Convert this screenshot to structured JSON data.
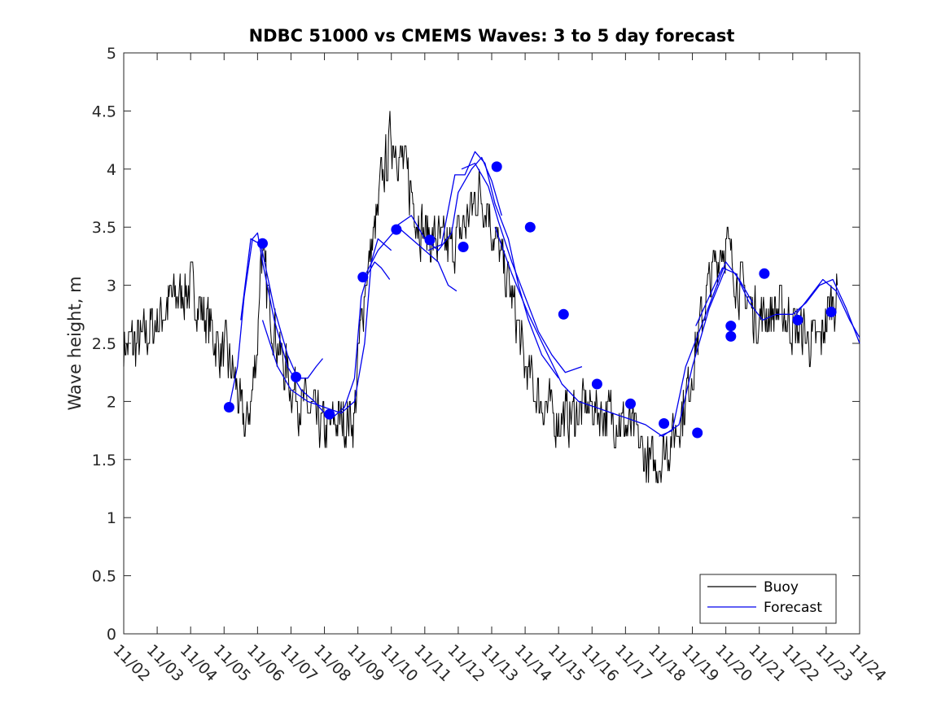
{
  "chart_data": {
    "type": "line",
    "title": "NDBC 51000 vs CMEMS Waves: 3 to 5 day forecast",
    "xlabel": "",
    "ylabel": "Wave height, m",
    "xlim": [
      0,
      22
    ],
    "ylim": [
      0,
      5
    ],
    "yticks": [
      0,
      0.5,
      1,
      1.5,
      2,
      2.5,
      3,
      3.5,
      4,
      4.5,
      5
    ],
    "ytick_labels": [
      "0",
      "0.5",
      "1",
      "1.5",
      "2",
      "2.5",
      "3",
      "3.5",
      "4",
      "4.5",
      "5"
    ],
    "xtick_labels": [
      "11/02",
      "11/03",
      "11/04",
      "11/05",
      "11/06",
      "11/07",
      "11/08",
      "11/09",
      "11/10",
      "11/11",
      "11/12",
      "11/13",
      "11/14",
      "11/15",
      "11/16",
      "11/17",
      "11/18",
      "11/19",
      "11/20",
      "11/21",
      "11/22",
      "11/23",
      "11/24"
    ],
    "x_units": "days since 11/02 00:00",
    "grid": false,
    "legend": {
      "position": "bottom-right",
      "entries": [
        "Buoy",
        "Forecast"
      ]
    },
    "colors": {
      "buoy": "#000000",
      "forecast": "#0000ee",
      "markers": "#0000ff"
    },
    "series": [
      {
        "name": "Buoy",
        "color": "#000000",
        "x": [
          0,
          0.5,
          1,
          1.5,
          2,
          2.5,
          2.8,
          3.2,
          3.4,
          3.5,
          3.65,
          3.8,
          4.0,
          4.1,
          4.3,
          4.6,
          4.8,
          5.0,
          5.3,
          5.6,
          5.8,
          6.0,
          6.5,
          6.9,
          7.0,
          7.2,
          7.4,
          7.6,
          7.7,
          7.9,
          8.0,
          8.3,
          8.6,
          8.8,
          9.0,
          9.2,
          9.5,
          9.8,
          10.0,
          10.3,
          10.6,
          10.9,
          11.0,
          11.2,
          11.4,
          11.6,
          11.8,
          12.0,
          12.3,
          12.6,
          12.9,
          13.2,
          13.5,
          13.8,
          14.1,
          14.4,
          14.7,
          15.0,
          15.3,
          15.6,
          15.9,
          16.2,
          16.5,
          16.8,
          17.0,
          17.2,
          17.4,
          17.6,
          17.8,
          18.0,
          18.2,
          18.4,
          18.6,
          18.8,
          19.0,
          19.2,
          19.5,
          19.8,
          20.0,
          20.3,
          20.6,
          20.8,
          21.0,
          21.2,
          21.35
        ],
        "y": [
          2.5,
          2.5,
          2.7,
          2.9,
          3.0,
          2.7,
          2.5,
          2.3,
          2.1,
          1.9,
          1.75,
          2.0,
          2.5,
          3.3,
          2.9,
          2.5,
          2.3,
          2.15,
          2.0,
          1.9,
          1.8,
          1.75,
          1.85,
          1.85,
          2.3,
          3.0,
          3.3,
          3.6,
          3.9,
          4.1,
          4.3,
          4.1,
          3.8,
          3.6,
          3.45,
          3.4,
          3.35,
          3.3,
          3.4,
          3.6,
          3.8,
          3.7,
          3.5,
          3.3,
          3.1,
          2.9,
          2.6,
          2.3,
          2.1,
          1.95,
          1.85,
          1.85,
          1.9,
          1.95,
          1.95,
          1.9,
          1.85,
          1.8,
          1.7,
          1.5,
          1.45,
          1.6,
          1.75,
          2.0,
          2.3,
          2.6,
          2.9,
          3.1,
          3.3,
          3.35,
          3.2,
          3.0,
          2.9,
          2.8,
          2.7,
          2.75,
          2.8,
          2.75,
          2.65,
          2.6,
          2.5,
          2.5,
          2.7,
          2.9,
          2.9
        ]
      },
      {
        "name": "Forecast",
        "color": "#0000ee",
        "segments": [
          {
            "x": [
              3.15,
              3.4,
              3.6,
              3.85,
              4.0,
              4.15,
              4.5,
              4.9,
              5.3,
              5.7,
              6.0
            ],
            "y": [
              1.95,
              2.3,
              2.9,
              3.4,
              3.45,
              3.2,
              2.7,
              2.3,
              2.1,
              2.0,
              1.9
            ]
          },
          {
            "x": [
              3.5,
              3.8,
              4.1,
              4.5,
              4.9,
              5.2,
              5.5,
              5.75,
              5.95
            ],
            "y": [
              2.7,
              3.4,
              3.35,
              2.8,
              2.4,
              2.2,
              2.2,
              2.3,
              2.37
            ]
          },
          {
            "x": [
              4.15,
              4.6,
              5.0,
              5.5,
              6.0,
              6.5,
              6.9,
              7.2,
              7.4,
              7.6,
              7.8,
              8.0
            ],
            "y": [
              2.7,
              2.3,
              2.1,
              2.0,
              1.95,
              1.9,
              2.0,
              2.5,
              3.2,
              3.4,
              3.35,
              3.3
            ]
          },
          {
            "x": [
              6.2,
              6.6,
              6.9,
              7.1,
              7.3,
              7.5,
              7.7,
              7.95
            ],
            "y": [
              1.85,
              1.95,
              2.2,
              2.9,
              3.1,
              3.2,
              3.15,
              3.05
            ]
          },
          {
            "x": [
              7.15,
              7.6,
              8.2,
              8.6,
              9.0,
              9.4,
              9.7,
              9.95
            ],
            "y": [
              3.05,
              3.3,
              3.5,
              3.4,
              3.3,
              3.2,
              3.0,
              2.95
            ]
          },
          {
            "x": [
              8.1,
              8.6,
              9.0,
              9.4,
              9.8,
              10.0,
              10.4,
              10.7,
              11.0,
              11.3
            ],
            "y": [
              3.5,
              3.6,
              3.4,
              3.3,
              3.45,
              3.8,
              4.0,
              4.1,
              3.9,
              3.6
            ]
          },
          {
            "x": [
              9.1,
              9.5,
              9.9,
              10.2,
              10.5,
              10.8,
              11.1,
              11.5,
              11.8,
              12.1,
              12.5,
              13.0
            ],
            "y": [
              3.3,
              3.35,
              3.95,
              3.95,
              4.15,
              4.05,
              3.7,
              3.4,
              3.0,
              2.7,
              2.4,
              2.2
            ]
          },
          {
            "x": [
              10.1,
              10.5,
              10.9,
              11.2,
              11.6,
              12.0,
              12.4,
              12.8,
              13.2,
              13.7
            ],
            "y": [
              4.0,
              4.05,
              3.85,
              3.55,
              3.2,
              2.9,
              2.6,
              2.4,
              2.25,
              2.3
            ]
          },
          {
            "x": [
              11.1,
              11.6,
              12.1,
              12.6,
              13.1,
              13.6,
              14.1,
              14.6,
              15.1,
              15.6,
              16.1,
              16.6,
              17.0,
              17.5,
              18.0
            ],
            "y": [
              3.5,
              3.1,
              2.75,
              2.45,
              2.15,
              2.0,
              1.95,
              1.9,
              1.85,
              1.8,
              1.7,
              1.8,
              2.3,
              2.8,
              3.15
            ]
          },
          {
            "x": [
              16.0,
              16.4,
              16.8,
              17.2,
              17.6,
              18.0,
              18.4,
              18.8
            ],
            "y": [
              1.7,
              1.75,
              2.3,
              2.6,
              2.9,
              3.2,
              3.05,
              2.85
            ]
          },
          {
            "x": [
              17.1,
              17.5,
              17.9,
              18.3,
              18.7,
              19.1,
              19.5,
              20.0,
              20.4,
              20.8,
              21.2,
              21.6,
              22.0
            ],
            "y": [
              2.65,
              2.9,
              3.15,
              3.1,
              2.85,
              2.7,
              2.75,
              2.75,
              2.85,
              3.0,
              3.05,
              2.8,
              2.5
            ]
          },
          {
            "x": [
              20.1,
              20.5,
              20.9,
              21.3,
              21.7,
              22.0
            ],
            "y": [
              2.75,
              2.9,
              3.05,
              2.95,
              2.7,
              2.55
            ]
          }
        ]
      }
    ],
    "markers": {
      "x": [
        3.15,
        4.15,
        5.15,
        6.15,
        7.15,
        8.15,
        9.15,
        10.15,
        11.15,
        12.15,
        13.15,
        14.15,
        15.15,
        16.15,
        17.15,
        18.15,
        18.15,
        19.15,
        20.15,
        21.15
      ],
      "y": [
        1.95,
        3.36,
        2.21,
        1.89,
        3.07,
        3.48,
        3.39,
        3.33,
        4.02,
        3.5,
        2.75,
        2.15,
        1.98,
        1.81,
        1.73,
        2.65,
        2.56,
        3.1,
        2.7,
        2.77
      ]
    }
  }
}
